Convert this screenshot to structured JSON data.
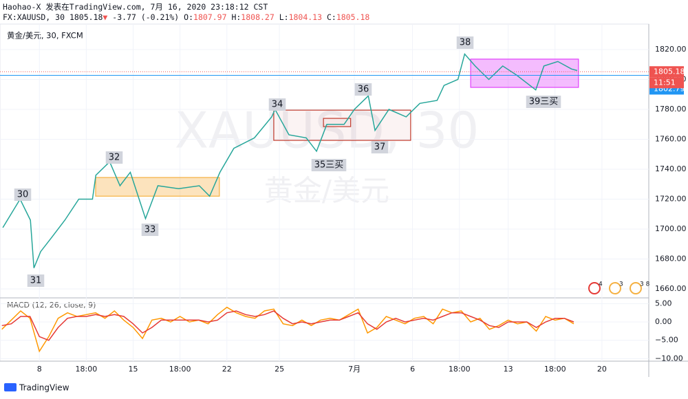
{
  "header": {
    "author": "Haohao-X 发表在TradingView.com, 7月 16, 2020 23:18:12 CST",
    "symbol": "FX:XAUUSD, 30",
    "last": "1805.18",
    "arrow": "▼",
    "change": "-3.77 (-0.21%)",
    "o_label": "O:",
    "o": "1807.97",
    "h_label": "H:",
    "h": "1808.27",
    "l_label": "L:",
    "l": "1804.13",
    "c_label": "C:",
    "c": "1805.18"
  },
  "footer": "TradingView",
  "chart_data": [
    {
      "type": "line",
      "title": "黄金/美元, 30, FXCM",
      "watermark": [
        "XAUUSD, 30",
        "黄金/美元"
      ],
      "x": [
        -1.95,
        -1.03,
        -0.48,
        -0.29,
        0.07,
        0.63,
        1.36,
        2.1,
        2.83,
        3.01,
        3.75,
        4.3,
        4.85,
        5.4,
        5.66,
        6.32,
        7.43,
        8.53,
        9.08,
        9.63,
        10.37,
        11.47,
        12.39,
        12.57,
        13.31,
        14.23,
        14.78,
        15.33,
        16.25,
        16.8,
        17.54,
        17.9,
        18.64,
        19.56,
        20.29,
        21.21,
        21.58,
        22.32,
        22.68,
        23.24,
        23.97,
        24.71,
        25.44,
        26.47,
        26.91,
        27.65,
        28.38,
        28.68
      ],
      "series": [
        {
          "name": "XAUUSD",
          "color": "#26a69a",
          "values": [
            1701,
            1720,
            1706,
            1674,
            1685,
            1694,
            1706,
            1720,
            1720,
            1736,
            1745,
            1729,
            1738,
            1717,
            1707,
            1729,
            1727,
            1729,
            1722,
            1738,
            1754,
            1761,
            1775,
            1780,
            1763,
            1761,
            1752,
            1770,
            1770,
            1780,
            1789,
            1766,
            1780,
            1775,
            1784,
            1786,
            1796,
            1800,
            1817,
            1809,
            1800,
            1809,
            1803,
            1793,
            1809,
            1812,
            1807,
            1806
          ]
        }
      ],
      "xlim": [
        -2.1,
        32.5
      ],
      "xticks": [
        {
          "value": 0,
          "label": "8"
        },
        {
          "value": 2.5,
          "label": "18:00"
        },
        {
          "value": 5,
          "label": "15"
        },
        {
          "value": 7.5,
          "label": "18:00"
        },
        {
          "value": 10,
          "label": "22"
        },
        {
          "value": 12.8,
          "label": "25"
        },
        {
          "value": 16.8,
          "label": "7月"
        },
        {
          "value": 19.9,
          "label": "6"
        },
        {
          "value": 22.4,
          "label": "18:00"
        },
        {
          "value": 25,
          "label": "13"
        },
        {
          "value": 27.5,
          "label": "18:00"
        },
        {
          "value": 30,
          "label": "20"
        }
      ],
      "ylim": [
        1654.5,
        1836.1
      ],
      "yticks": [
        {
          "value": 1660,
          "label": "1660.00"
        },
        {
          "value": 1680,
          "label": "1680.00"
        },
        {
          "value": 1700,
          "label": "1700.00"
        },
        {
          "value": 1720,
          "label": "1720.00"
        },
        {
          "value": 1740,
          "label": "1740.00"
        },
        {
          "value": 1760,
          "label": "1760.00"
        },
        {
          "value": 1780,
          "label": "1780.00"
        },
        {
          "value": 1800,
          "label": "1800.00"
        },
        {
          "value": 1820,
          "label": "1820.00"
        }
      ],
      "zones": [
        {
          "x": [
            3.0,
            9.6
          ],
          "y": [
            1722,
            1734.5
          ],
          "color": "#f5b041"
        },
        {
          "x": [
            12.5,
            19.8
          ],
          "y": [
            1759.3,
            1779.5
          ],
          "color": "#c0392b"
        },
        {
          "x": [
            15.15,
            16.6
          ],
          "y": [
            1768.5,
            1774
          ],
          "color": "#c0392b"
        },
        {
          "x": [
            23.0,
            28.75
          ],
          "y": [
            1794.7,
            1813.6
          ],
          "color": "#e040fb"
        }
      ],
      "price_lines": [
        {
          "value": 1805.18,
          "color": "#ef5350"
        },
        {
          "value": 1802.79,
          "color": "#2196f3"
        }
      ],
      "countdown": "11:51",
      "annotations": [
        "30",
        "31",
        "32",
        "33",
        "34",
        "35三买",
        "36",
        "37",
        "38",
        "39三买"
      ],
      "events": [
        "4",
        "3",
        "3 8"
      ]
    },
    {
      "type": "line",
      "title": "MACD (12, 26, close, 9)",
      "x": [
        -2,
        -1.5,
        -1,
        -0.5,
        0,
        0.5,
        1,
        1.5,
        2,
        2.5,
        3,
        3.5,
        4,
        4.5,
        5,
        5.5,
        6,
        6.5,
        7,
        7.5,
        8,
        8.5,
        9,
        9.5,
        10,
        10.5,
        11,
        11.5,
        12,
        12.5,
        13,
        13.5,
        14,
        14.5,
        15,
        15.5,
        16,
        16.5,
        17,
        17.5,
        18,
        18.5,
        19,
        19.5,
        20,
        20.5,
        21,
        21.5,
        22,
        22.5,
        23,
        23.5,
        24,
        24.5,
        25,
        25.5,
        26,
        26.5,
        27,
        27.5,
        28,
        28.5
      ],
      "series": [
        {
          "name": "MACD",
          "color": "#ff9800",
          "values": [
            -2,
            0.5,
            3,
            1,
            -8,
            -4,
            1,
            2.5,
            1.5,
            2,
            2.5,
            1,
            3,
            0.5,
            -1.5,
            -4.5,
            0.5,
            1,
            0,
            1.5,
            0,
            0.5,
            -0.5,
            2,
            4,
            2.5,
            1.5,
            1,
            3,
            3.5,
            -0.5,
            -1,
            0.5,
            -1,
            0.5,
            1,
            0.5,
            2,
            3.5,
            -3,
            -1.5,
            1.5,
            0.5,
            -0.5,
            1,
            1.5,
            -0.5,
            3.5,
            2.5,
            3,
            0,
            1,
            -2,
            -1,
            0.5,
            -0.5,
            0,
            -2.5,
            1.5,
            0.5,
            1,
            -0.5
          ]
        },
        {
          "name": "Signal",
          "color": "#e53935",
          "values": [
            -1,
            -0.5,
            1.5,
            1.5,
            -4,
            -5,
            -1.5,
            1,
            1.5,
            1.5,
            2,
            1.5,
            2,
            1.5,
            -0.5,
            -3,
            -1.5,
            0.5,
            0.5,
            0.5,
            0.5,
            0.5,
            0,
            0.5,
            2.5,
            3,
            2,
            1.5,
            2,
            3,
            1,
            -0.5,
            0,
            -0.5,
            0,
            0.5,
            0.5,
            1.5,
            2.5,
            -0.5,
            -2,
            0,
            1,
            0,
            0.5,
            1,
            0.5,
            1.5,
            2.5,
            2.5,
            1.5,
            0.5,
            -1,
            -1.5,
            0,
            0,
            0,
            -1.5,
            0,
            1,
            1,
            0
          ]
        }
      ],
      "ylim": [
        -10.69,
        6.56
      ],
      "yticks": [
        {
          "value": 5,
          "label": "5.00"
        },
        {
          "value": 0,
          "label": "0.00"
        },
        {
          "value": -5,
          "label": "−5.00"
        },
        {
          "value": -10,
          "label": "−10.00"
        }
      ]
    }
  ]
}
